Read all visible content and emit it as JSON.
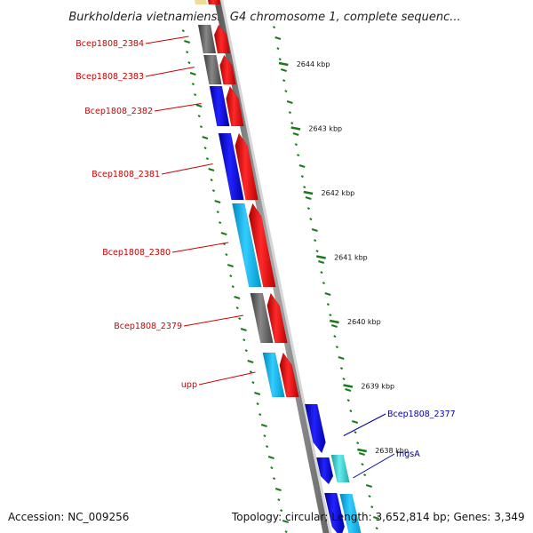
{
  "title": "Burkholderia vietnamiensis G4 chromosome 1, complete sequenc...",
  "footer": {
    "accession": "Accession: NC_009256",
    "topology": "Topology: circular; Length: 3,652,814 bp; Genes: 3,349"
  },
  "colors": {
    "label_reverse": "#cc0000",
    "label_forward": "#0000aa",
    "backbone": "#777777",
    "tick": "#1a7a1a",
    "cog_red": "#ff0000",
    "cog_blue": "#0000dd",
    "cog_cyan": "#00bbee",
    "cog_gray": "#666666",
    "cog_teal": "#33cccc",
    "cog_tan": "#eedd99"
  },
  "ticks": [
    {
      "label": "2644 kbp"
    },
    {
      "label": "2643 kbp"
    },
    {
      "label": "2642 kbp"
    },
    {
      "label": "2641 kbp"
    },
    {
      "label": "2640 kbp"
    },
    {
      "label": "2639 kbp"
    },
    {
      "label": "2638 kbp"
    }
  ],
  "genes_left": [
    {
      "name": "Bcep1808_2384",
      "cog_color": "gray"
    },
    {
      "name": "Bcep1808_2383",
      "cog_color": "gray"
    },
    {
      "name": "Bcep1808_2382",
      "cog_color": "blue"
    },
    {
      "name": "Bcep1808_2381",
      "cog_color": "blue"
    },
    {
      "name": "Bcep1808_2380",
      "cog_color": "cyan"
    },
    {
      "name": "Bcep1808_2379",
      "cog_color": "gray"
    },
    {
      "name": "upp",
      "cog_color": "cyan"
    }
  ],
  "genes_right": [
    {
      "name": "Bcep1808_2377",
      "cog_color": "blue"
    },
    {
      "name": "mgsA",
      "cog_color": "teal"
    }
  ]
}
